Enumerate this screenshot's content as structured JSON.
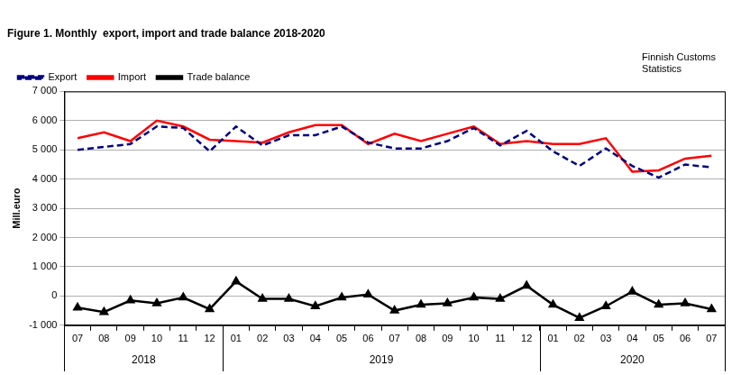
{
  "chart_data": {
    "type": "line",
    "title": "Figure 1. Monthly  export, import and trade balance 2018-2020",
    "source": [
      "Finnish Customs",
      "Statistics"
    ],
    "y_label": "Mill.euro",
    "categories": [
      "07",
      "08",
      "09",
      "10",
      "11",
      "12",
      "01",
      "02",
      "03",
      "04",
      "05",
      "06",
      "07",
      "08",
      "09",
      "10",
      "11",
      "12",
      "01",
      "02",
      "03",
      "04",
      "05",
      "06",
      "07"
    ],
    "year_groups": [
      {
        "label": "2018",
        "size": 6
      },
      {
        "label": "2019",
        "size": 12
      },
      {
        "label": "2020",
        "size": 7
      }
    ],
    "series": [
      {
        "name": "Export",
        "color": "#000080",
        "line_style": "dashed",
        "marker": "none",
        "values": [
          5000,
          5100,
          5200,
          5800,
          5750,
          4950,
          5800,
          5150,
          5500,
          5500,
          5800,
          5250,
          5050,
          5050,
          5300,
          5750,
          5150,
          5650,
          4950,
          4450,
          5050,
          4450,
          4050,
          4500,
          4400
        ]
      },
      {
        "name": "Import",
        "color": "#ff0000",
        "line_style": "solid",
        "marker": "none",
        "values": [
          5400,
          5600,
          5300,
          6000,
          5800,
          5350,
          5300,
          5250,
          5600,
          5850,
          5850,
          5200,
          5550,
          5300,
          5550,
          5800,
          5200,
          5300,
          5200,
          5200,
          5400,
          4250,
          4300,
          4700,
          4800
        ]
      },
      {
        "name": "Trade balance",
        "color": "#000000",
        "line_style": "solid",
        "marker": "triangle",
        "values": [
          -400,
          -550,
          -150,
          -250,
          -50,
          -450,
          500,
          -100,
          -100,
          -350,
          -50,
          50,
          -500,
          -300,
          -250,
          -50,
          -100,
          350,
          -300,
          -750,
          -350,
          150,
          -300,
          -250,
          -450
        ]
      }
    ],
    "ylim": [
      -1000,
      7000
    ],
    "yticks": [
      {
        "value": -1000,
        "label": "-1 000"
      },
      0,
      {
        "value": 1000,
        "label": "1 000"
      },
      {
        "value": 2000,
        "label": "2 000"
      },
      {
        "value": 3000,
        "label": "3 000"
      },
      {
        "value": 4000,
        "label": "4 000"
      },
      {
        "value": 5000,
        "label": "5 000"
      },
      {
        "value": 6000,
        "label": "6 000"
      },
      {
        "value": 7000,
        "label": "7 000"
      }
    ],
    "grid": true,
    "legend": "upper left"
  }
}
